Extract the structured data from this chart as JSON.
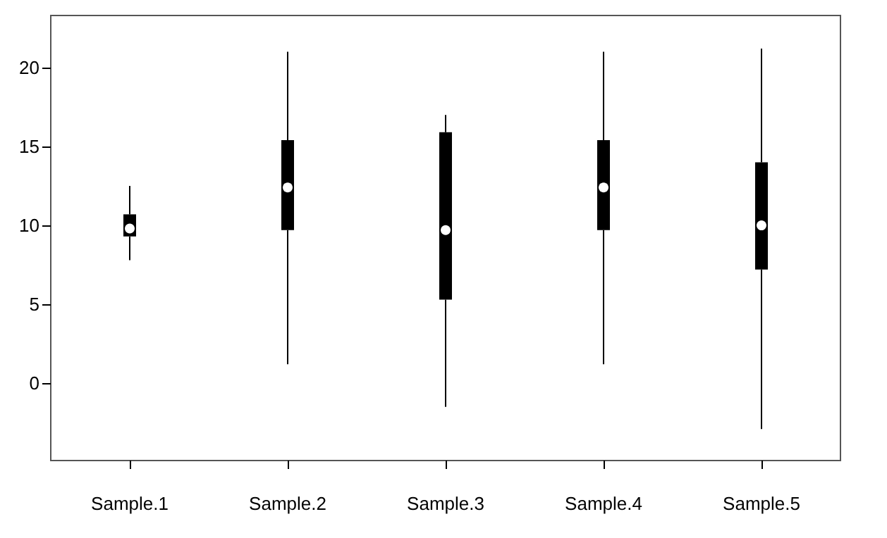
{
  "chart_data": {
    "type": "box",
    "categories": [
      "Sample.1",
      "Sample.2",
      "Sample.3",
      "Sample.4",
      "Sample.5"
    ],
    "boxes": [
      {
        "low": 7.8,
        "q1": 9.3,
        "median": 9.8,
        "q3": 10.7,
        "high": 12.5
      },
      {
        "low": 1.2,
        "q1": 9.7,
        "median": 12.4,
        "q3": 15.4,
        "high": 21.0
      },
      {
        "low": -1.5,
        "q1": 5.3,
        "median": 9.7,
        "q3": 15.9,
        "high": 17.0
      },
      {
        "low": 1.2,
        "q1": 9.7,
        "median": 12.4,
        "q3": 15.4,
        "high": 21.0
      },
      {
        "low": -2.9,
        "q1": 7.2,
        "median": 10.0,
        "q3": 14.0,
        "high": 21.2
      }
    ],
    "color": "#000000",
    "ylim": [
      -4.9,
      23.3
    ],
    "yticks": [
      0,
      5,
      10,
      15,
      20
    ],
    "grid": false
  }
}
